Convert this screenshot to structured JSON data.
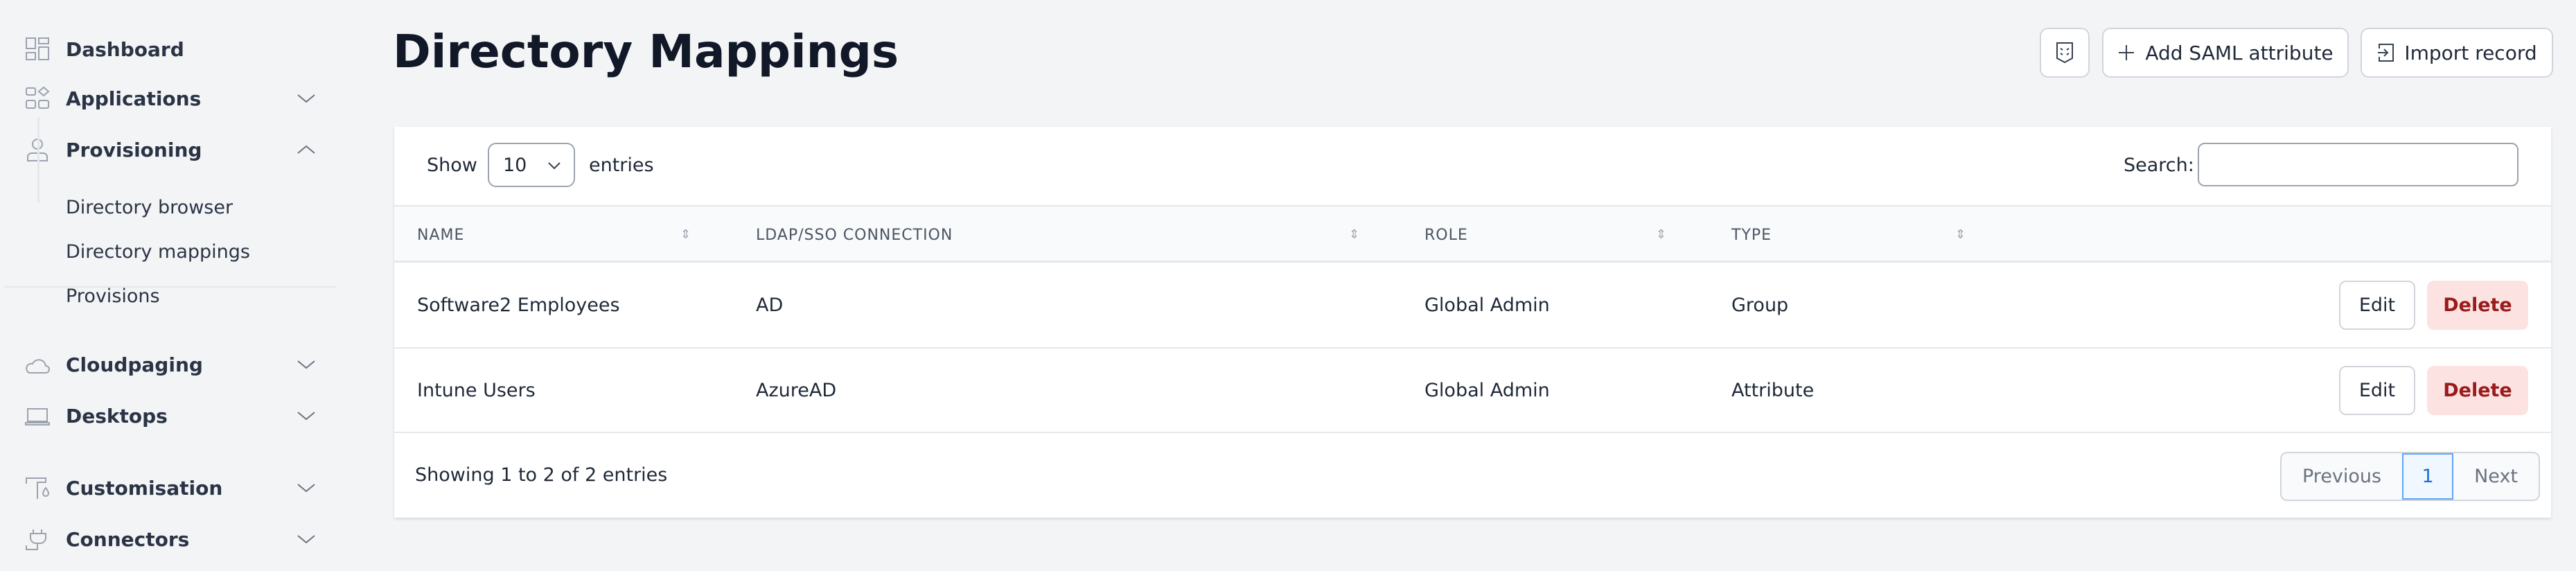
{
  "sidebar": {
    "items": [
      {
        "label": "Dashboard",
        "icon": "dashboard-icon"
      },
      {
        "label": "Applications",
        "icon": "applications-icon",
        "chevron": "down"
      },
      {
        "label": "Provisioning",
        "icon": "user-icon",
        "chevron": "up",
        "children": [
          "Directory browser",
          "Directory mappings",
          "Provisions"
        ]
      },
      {
        "label": "Cloudpaging",
        "icon": "cloud-icon",
        "chevron": "down"
      },
      {
        "label": "Desktops",
        "icon": "laptop-icon",
        "chevron": "down"
      },
      {
        "label": "Customisation",
        "icon": "paint-roller-icon",
        "chevron": "down"
      },
      {
        "label": "Connectors",
        "icon": "plug-icon",
        "chevron": "down"
      }
    ]
  },
  "header": {
    "title": "Directory Mappings",
    "add_saml_label": "Add SAML attribute",
    "import_label": "Import record"
  },
  "table": {
    "show_label": "Show",
    "entries_value": "10",
    "entries_label": "entries",
    "search_label": "Search:",
    "search_value": "",
    "columns": [
      "NAME",
      "LDAP/SSO CONNECTION",
      "ROLE",
      "TYPE"
    ],
    "rows": [
      {
        "name": "Software2 Employees",
        "connection": "AD",
        "role": "Global Admin",
        "type": "Group"
      },
      {
        "name": "Intune Users",
        "connection": "AzureAD",
        "role": "Global Admin",
        "type": "Attribute"
      }
    ],
    "edit_label": "Edit",
    "delete_label": "Delete",
    "info": "Showing 1 to 2 of 2 entries",
    "pagination": {
      "previous": "Previous",
      "current": "1",
      "next": "Next"
    }
  },
  "colors": {
    "background": "#f3f4f6",
    "delete_bg": "#fde2e2",
    "delete_text": "#991b1b",
    "active_page": "#60a5fa"
  }
}
